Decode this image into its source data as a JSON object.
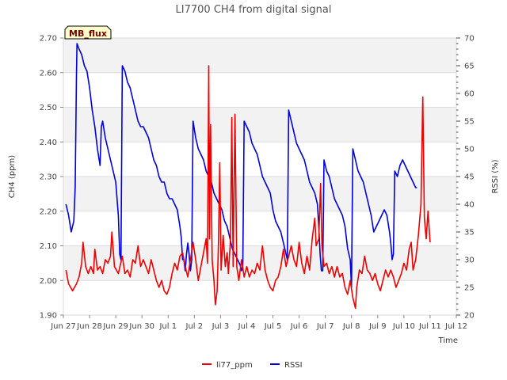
{
  "chart_data": {
    "type": "line",
    "title": "LI7700 CH4 from digital signal",
    "xlabel": "Time",
    "ylabel": "CH4 (ppm)",
    "y2label": "RSSI (%)",
    "badge": "MB_flux",
    "x_ticks": [
      "Jun 27",
      "Jun 28",
      "Jun 29",
      "Jun 30",
      "Jul 1",
      "Jul 2",
      "Jul 3",
      "Jul 4",
      "Jul 5",
      "Jul 6",
      "Jul 7",
      "Jul 8",
      "Jul 9",
      "Jul 10",
      "Jul 11",
      "Jul 12"
    ],
    "x_tick_days": [
      0,
      1,
      2,
      3,
      4,
      5,
      6,
      7,
      8,
      9,
      10,
      11,
      12,
      13,
      14,
      15
    ],
    "xlim_days": [
      0,
      15
    ],
    "ylim": [
      1.9,
      2.7
    ],
    "y_ticks": [
      "1.90",
      "2.00",
      "2.10",
      "2.20",
      "2.30",
      "2.40",
      "2.50",
      "2.60",
      "2.70"
    ],
    "y2lim": [
      20,
      70
    ],
    "y2_ticks": [
      "20",
      "25",
      "30",
      "35",
      "40",
      "45",
      "50",
      "55",
      "60",
      "65",
      "70"
    ],
    "grid": true,
    "legend_position": "bottom",
    "series": [
      {
        "name": "li77_ppm",
        "axis": "left",
        "color": "#ee0000",
        "points": [
          [
            0.1,
            2.03
          ],
          [
            0.2,
            1.99
          ],
          [
            0.35,
            1.97
          ],
          [
            0.5,
            1.99
          ],
          [
            0.6,
            2.01
          ],
          [
            0.7,
            2.05
          ],
          [
            0.75,
            2.11
          ],
          [
            0.85,
            2.04
          ],
          [
            0.95,
            2.02
          ],
          [
            1.05,
            2.04
          ],
          [
            1.15,
            2.02
          ],
          [
            1.2,
            2.09
          ],
          [
            1.3,
            2.03
          ],
          [
            1.4,
            2.04
          ],
          [
            1.5,
            2.02
          ],
          [
            1.6,
            2.06
          ],
          [
            1.7,
            2.05
          ],
          [
            1.8,
            2.07
          ],
          [
            1.85,
            2.14
          ],
          [
            1.95,
            2.04
          ],
          [
            2.1,
            2.02
          ],
          [
            2.25,
            2.07
          ],
          [
            2.35,
            2.02
          ],
          [
            2.45,
            2.03
          ],
          [
            2.55,
            2.01
          ],
          [
            2.65,
            2.06
          ],
          [
            2.75,
            2.05
          ],
          [
            2.85,
            2.1
          ],
          [
            2.95,
            2.04
          ],
          [
            3.05,
            2.06
          ],
          [
            3.15,
            2.04
          ],
          [
            3.25,
            2.02
          ],
          [
            3.35,
            2.06
          ],
          [
            3.45,
            2.03
          ],
          [
            3.55,
            2.0
          ],
          [
            3.65,
            1.98
          ],
          [
            3.75,
            2.0
          ],
          [
            3.85,
            1.97
          ],
          [
            3.95,
            1.96
          ],
          [
            4.05,
            1.98
          ],
          [
            4.15,
            2.02
          ],
          [
            4.25,
            2.05
          ],
          [
            4.35,
            2.03
          ],
          [
            4.45,
            2.07
          ],
          [
            4.55,
            2.08
          ],
          [
            4.65,
            2.04
          ],
          [
            4.75,
            2.01
          ],
          [
            4.85,
            2.06
          ],
          [
            4.95,
            2.11
          ],
          [
            5.05,
            2.06
          ],
          [
            5.15,
            2.0
          ],
          [
            5.25,
            2.04
          ],
          [
            5.35,
            2.08
          ],
          [
            5.45,
            2.12
          ],
          [
            5.5,
            2.05
          ],
          [
            5.55,
            2.62
          ],
          [
            5.58,
            2.12
          ],
          [
            5.62,
            2.45
          ],
          [
            5.68,
            2.06
          ],
          [
            5.75,
            2.0
          ],
          [
            5.8,
            1.93
          ],
          [
            5.87,
            1.97
          ],
          [
            5.92,
            2.11
          ],
          [
            5.97,
            2.34
          ],
          [
            6.02,
            2.03
          ],
          [
            6.1,
            2.13
          ],
          [
            6.18,
            2.04
          ],
          [
            6.25,
            2.08
          ],
          [
            6.3,
            2.02
          ],
          [
            6.38,
            2.12
          ],
          [
            6.43,
            2.47
          ],
          [
            6.48,
            2.04
          ],
          [
            6.55,
            2.48
          ],
          [
            6.62,
            2.04
          ],
          [
            6.7,
            2.0
          ],
          [
            6.8,
            2.06
          ],
          [
            6.9,
            2.01
          ],
          [
            7.0,
            2.04
          ],
          [
            7.1,
            2.01
          ],
          [
            7.2,
            2.03
          ],
          [
            7.3,
            2.02
          ],
          [
            7.4,
            2.05
          ],
          [
            7.5,
            2.03
          ],
          [
            7.6,
            2.1
          ],
          [
            7.7,
            2.03
          ],
          [
            7.8,
            2.0
          ],
          [
            7.9,
            1.98
          ],
          [
            8.0,
            1.97
          ],
          [
            8.1,
            2.0
          ],
          [
            8.2,
            2.01
          ],
          [
            8.3,
            2.04
          ],
          [
            8.4,
            2.09
          ],
          [
            8.5,
            2.04
          ],
          [
            8.6,
            2.07
          ],
          [
            8.7,
            2.1
          ],
          [
            8.8,
            2.06
          ],
          [
            8.9,
            2.04
          ],
          [
            9.0,
            2.11
          ],
          [
            9.1,
            2.05
          ],
          [
            9.2,
            2.02
          ],
          [
            9.3,
            2.07
          ],
          [
            9.4,
            2.03
          ],
          [
            9.5,
            2.12
          ],
          [
            9.6,
            2.18
          ],
          [
            9.65,
            2.1
          ],
          [
            9.75,
            2.12
          ],
          [
            9.82,
            2.28
          ],
          [
            9.87,
            2.1
          ],
          [
            9.95,
            2.04
          ],
          [
            10.05,
            2.05
          ],
          [
            10.15,
            2.02
          ],
          [
            10.25,
            2.04
          ],
          [
            10.35,
            2.01
          ],
          [
            10.45,
            2.04
          ],
          [
            10.55,
            2.01
          ],
          [
            10.65,
            2.02
          ],
          [
            10.75,
            1.98
          ],
          [
            10.85,
            1.96
          ],
          [
            10.95,
            2.0
          ],
          [
            11.05,
            1.95
          ],
          [
            11.15,
            1.92
          ],
          [
            11.2,
            1.98
          ],
          [
            11.3,
            2.03
          ],
          [
            11.4,
            2.02
          ],
          [
            11.5,
            2.07
          ],
          [
            11.6,
            2.03
          ],
          [
            11.7,
            2.02
          ],
          [
            11.8,
            2.0
          ],
          [
            11.9,
            2.02
          ],
          [
            12.0,
            1.99
          ],
          [
            12.1,
            1.97
          ],
          [
            12.2,
            2.0
          ],
          [
            12.3,
            2.03
          ],
          [
            12.4,
            2.01
          ],
          [
            12.5,
            2.03
          ],
          [
            12.6,
            2.01
          ],
          [
            12.7,
            1.98
          ],
          [
            12.8,
            2.0
          ],
          [
            12.9,
            2.02
          ],
          [
            13.0,
            2.05
          ],
          [
            13.1,
            2.03
          ],
          [
            13.2,
            2.09
          ],
          [
            13.28,
            2.11
          ],
          [
            13.35,
            2.03
          ],
          [
            13.45,
            2.06
          ],
          [
            13.55,
            2.13
          ],
          [
            13.65,
            2.22
          ],
          [
            13.72,
            2.53
          ],
          [
            13.78,
            2.18
          ],
          [
            13.85,
            2.12
          ],
          [
            13.92,
            2.2
          ],
          [
            14.0,
            2.11
          ]
        ]
      },
      {
        "name": "RSSI",
        "axis": "right",
        "color": "#0000dd",
        "points": [
          [
            0.1,
            40
          ],
          [
            0.2,
            38
          ],
          [
            0.3,
            35
          ],
          [
            0.4,
            37
          ],
          [
            0.45,
            43
          ],
          [
            0.5,
            63
          ],
          [
            0.52,
            69
          ],
          [
            0.6,
            68
          ],
          [
            0.7,
            67
          ],
          [
            0.8,
            65
          ],
          [
            0.9,
            64
          ],
          [
            1.0,
            61
          ],
          [
            1.1,
            57
          ],
          [
            1.2,
            54
          ],
          [
            1.3,
            50
          ],
          [
            1.4,
            47
          ],
          [
            1.45,
            54
          ],
          [
            1.5,
            55
          ],
          [
            1.6,
            52
          ],
          [
            1.7,
            50
          ],
          [
            1.8,
            48
          ],
          [
            1.9,
            46
          ],
          [
            2.0,
            44
          ],
          [
            2.1,
            38
          ],
          [
            2.15,
            31
          ],
          [
            2.2,
            30
          ],
          [
            2.25,
            65
          ],
          [
            2.35,
            64
          ],
          [
            2.45,
            62
          ],
          [
            2.55,
            61
          ],
          [
            2.65,
            59
          ],
          [
            2.75,
            57
          ],
          [
            2.85,
            55
          ],
          [
            2.95,
            54
          ],
          [
            3.05,
            54
          ],
          [
            3.15,
            53
          ],
          [
            3.25,
            52
          ],
          [
            3.35,
            50
          ],
          [
            3.45,
            48
          ],
          [
            3.55,
            47
          ],
          [
            3.65,
            45
          ],
          [
            3.75,
            44
          ],
          [
            3.85,
            44
          ],
          [
            3.95,
            42
          ],
          [
            4.05,
            41
          ],
          [
            4.15,
            41
          ],
          [
            4.25,
            40
          ],
          [
            4.35,
            39
          ],
          [
            4.45,
            36
          ],
          [
            4.5,
            34
          ],
          [
            4.55,
            30
          ],
          [
            4.6,
            30
          ],
          [
            4.65,
            28
          ],
          [
            4.7,
            31
          ],
          [
            4.75,
            33
          ],
          [
            4.8,
            31
          ],
          [
            4.85,
            28
          ],
          [
            4.9,
            30
          ],
          [
            4.95,
            55
          ],
          [
            5.05,
            52
          ],
          [
            5.15,
            50
          ],
          [
            5.25,
            49
          ],
          [
            5.35,
            48
          ],
          [
            5.45,
            46
          ],
          [
            5.55,
            45
          ],
          [
            5.65,
            44
          ],
          [
            5.75,
            42
          ],
          [
            5.85,
            41
          ],
          [
            5.95,
            40
          ],
          [
            6.05,
            39
          ],
          [
            6.15,
            37
          ],
          [
            6.25,
            36
          ],
          [
            6.35,
            34
          ],
          [
            6.45,
            32
          ],
          [
            6.55,
            31
          ],
          [
            6.65,
            30
          ],
          [
            6.75,
            29
          ],
          [
            6.8,
            28
          ],
          [
            6.85,
            29
          ],
          [
            6.9,
            55
          ],
          [
            7.0,
            54
          ],
          [
            7.1,
            53
          ],
          [
            7.2,
            51
          ],
          [
            7.3,
            50
          ],
          [
            7.4,
            49
          ],
          [
            7.5,
            47
          ],
          [
            7.6,
            45
          ],
          [
            7.7,
            44
          ],
          [
            7.8,
            43
          ],
          [
            7.9,
            42
          ],
          [
            8.0,
            39
          ],
          [
            8.1,
            37
          ],
          [
            8.2,
            36
          ],
          [
            8.3,
            35
          ],
          [
            8.4,
            33
          ],
          [
            8.5,
            31
          ],
          [
            8.55,
            30
          ],
          [
            8.6,
            57
          ],
          [
            8.7,
            55
          ],
          [
            8.8,
            53
          ],
          [
            8.9,
            51
          ],
          [
            9.0,
            50
          ],
          [
            9.1,
            49
          ],
          [
            9.2,
            48
          ],
          [
            9.3,
            46
          ],
          [
            9.4,
            44
          ],
          [
            9.5,
            43
          ],
          [
            9.6,
            42
          ],
          [
            9.7,
            40
          ],
          [
            9.75,
            36
          ],
          [
            9.8,
            31
          ],
          [
            9.85,
            28
          ],
          [
            9.9,
            28
          ],
          [
            9.95,
            48
          ],
          [
            10.05,
            46
          ],
          [
            10.15,
            45
          ],
          [
            10.25,
            43
          ],
          [
            10.35,
            41
          ],
          [
            10.45,
            40
          ],
          [
            10.55,
            39
          ],
          [
            10.65,
            38
          ],
          [
            10.75,
            36
          ],
          [
            10.85,
            32
          ],
          [
            10.95,
            30
          ],
          [
            11.0,
            25
          ],
          [
            11.05,
            50
          ],
          [
            11.15,
            48
          ],
          [
            11.25,
            46
          ],
          [
            11.35,
            45
          ],
          [
            11.45,
            44
          ],
          [
            11.55,
            42
          ],
          [
            11.65,
            40
          ],
          [
            11.75,
            38
          ],
          [
            11.85,
            35
          ],
          [
            11.95,
            36
          ],
          [
            12.05,
            37
          ],
          [
            12.15,
            38
          ],
          [
            12.25,
            39
          ],
          [
            12.35,
            38
          ],
          [
            12.45,
            35
          ],
          [
            12.5,
            33
          ],
          [
            12.55,
            30
          ],
          [
            12.6,
            31
          ],
          [
            12.65,
            46
          ],
          [
            12.75,
            45
          ],
          [
            12.85,
            47
          ],
          [
            12.95,
            48
          ],
          [
            13.05,
            47
          ],
          [
            13.15,
            46
          ],
          [
            13.25,
            45
          ],
          [
            13.35,
            44
          ],
          [
            13.45,
            43
          ],
          [
            13.5,
            43
          ]
        ]
      }
    ]
  }
}
